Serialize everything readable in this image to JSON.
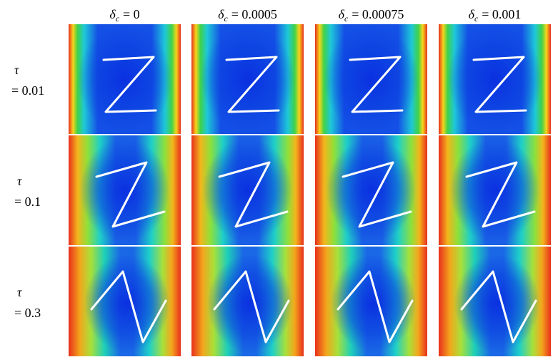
{
  "columns": [
    {
      "param": "δ",
      "sub": "c",
      "value": "= 0"
    },
    {
      "param": "δ",
      "sub": "c",
      "value": "= 0.0005"
    },
    {
      "param": "δ",
      "sub": "c",
      "value": "= 0.00075"
    },
    {
      "param": "δ",
      "sub": "c",
      "value": "= 0.001"
    }
  ],
  "rows": [
    {
      "param": "τ",
      "value": "= 0.01"
    },
    {
      "param": "τ",
      "value": "= 0.1"
    },
    {
      "param": "τ",
      "value": "= 0.3"
    }
  ]
}
